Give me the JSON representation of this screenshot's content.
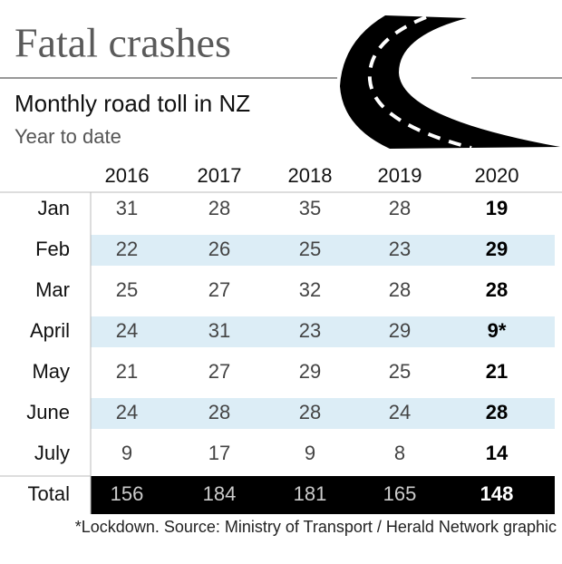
{
  "header": {
    "title": "Fatal crashes",
    "subtitle": "Monthly road toll in NZ",
    "note": "Year to date"
  },
  "table": {
    "columns": [
      "2016",
      "2017",
      "2018",
      "2019",
      "2020"
    ],
    "rows": [
      {
        "label": "Jan",
        "cells": [
          "31",
          "28",
          "35",
          "28",
          "19"
        ]
      },
      {
        "label": "Feb",
        "cells": [
          "22",
          "26",
          "25",
          "23",
          "29"
        ]
      },
      {
        "label": "Mar",
        "cells": [
          "25",
          "27",
          "32",
          "28",
          "28"
        ]
      },
      {
        "label": "April",
        "cells": [
          "24",
          "31",
          "23",
          "29",
          "9*"
        ]
      },
      {
        "label": "May",
        "cells": [
          "21",
          "27",
          "29",
          "25",
          "21"
        ]
      },
      {
        "label": "June",
        "cells": [
          "24",
          "28",
          "28",
          "24",
          "28"
        ]
      },
      {
        "label": "July",
        "cells": [
          "9",
          "17",
          "9",
          "8",
          "14"
        ]
      }
    ],
    "total": {
      "label": "Total",
      "cells": [
        "156",
        "184",
        "181",
        "165",
        "148"
      ]
    }
  },
  "footer": {
    "source": "*Lockdown. Source: Ministry of Transport / Herald Network graphic"
  }
}
